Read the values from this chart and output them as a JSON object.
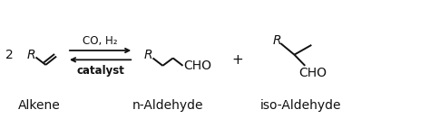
{
  "bg_color": "#ffffff",
  "text_color": "#111111",
  "fig_width": 4.74,
  "fig_height": 1.42,
  "dpi": 100,
  "label_alkene": "Alkene",
  "label_n_aldehyde": "n-Aldehyde",
  "label_iso_aldehyde": "iso-Aldehyde",
  "arrow_above": "CO, H₂",
  "arrow_below": "catalyst",
  "plus_sign": "+",
  "two_label": "2",
  "R_label": "R",
  "CHO_label": "CHO",
  "xlim": [
    0,
    10
  ],
  "ylim": [
    0,
    3
  ],
  "fs_base": 10,
  "fs_small": 8.5,
  "lw": 1.4
}
